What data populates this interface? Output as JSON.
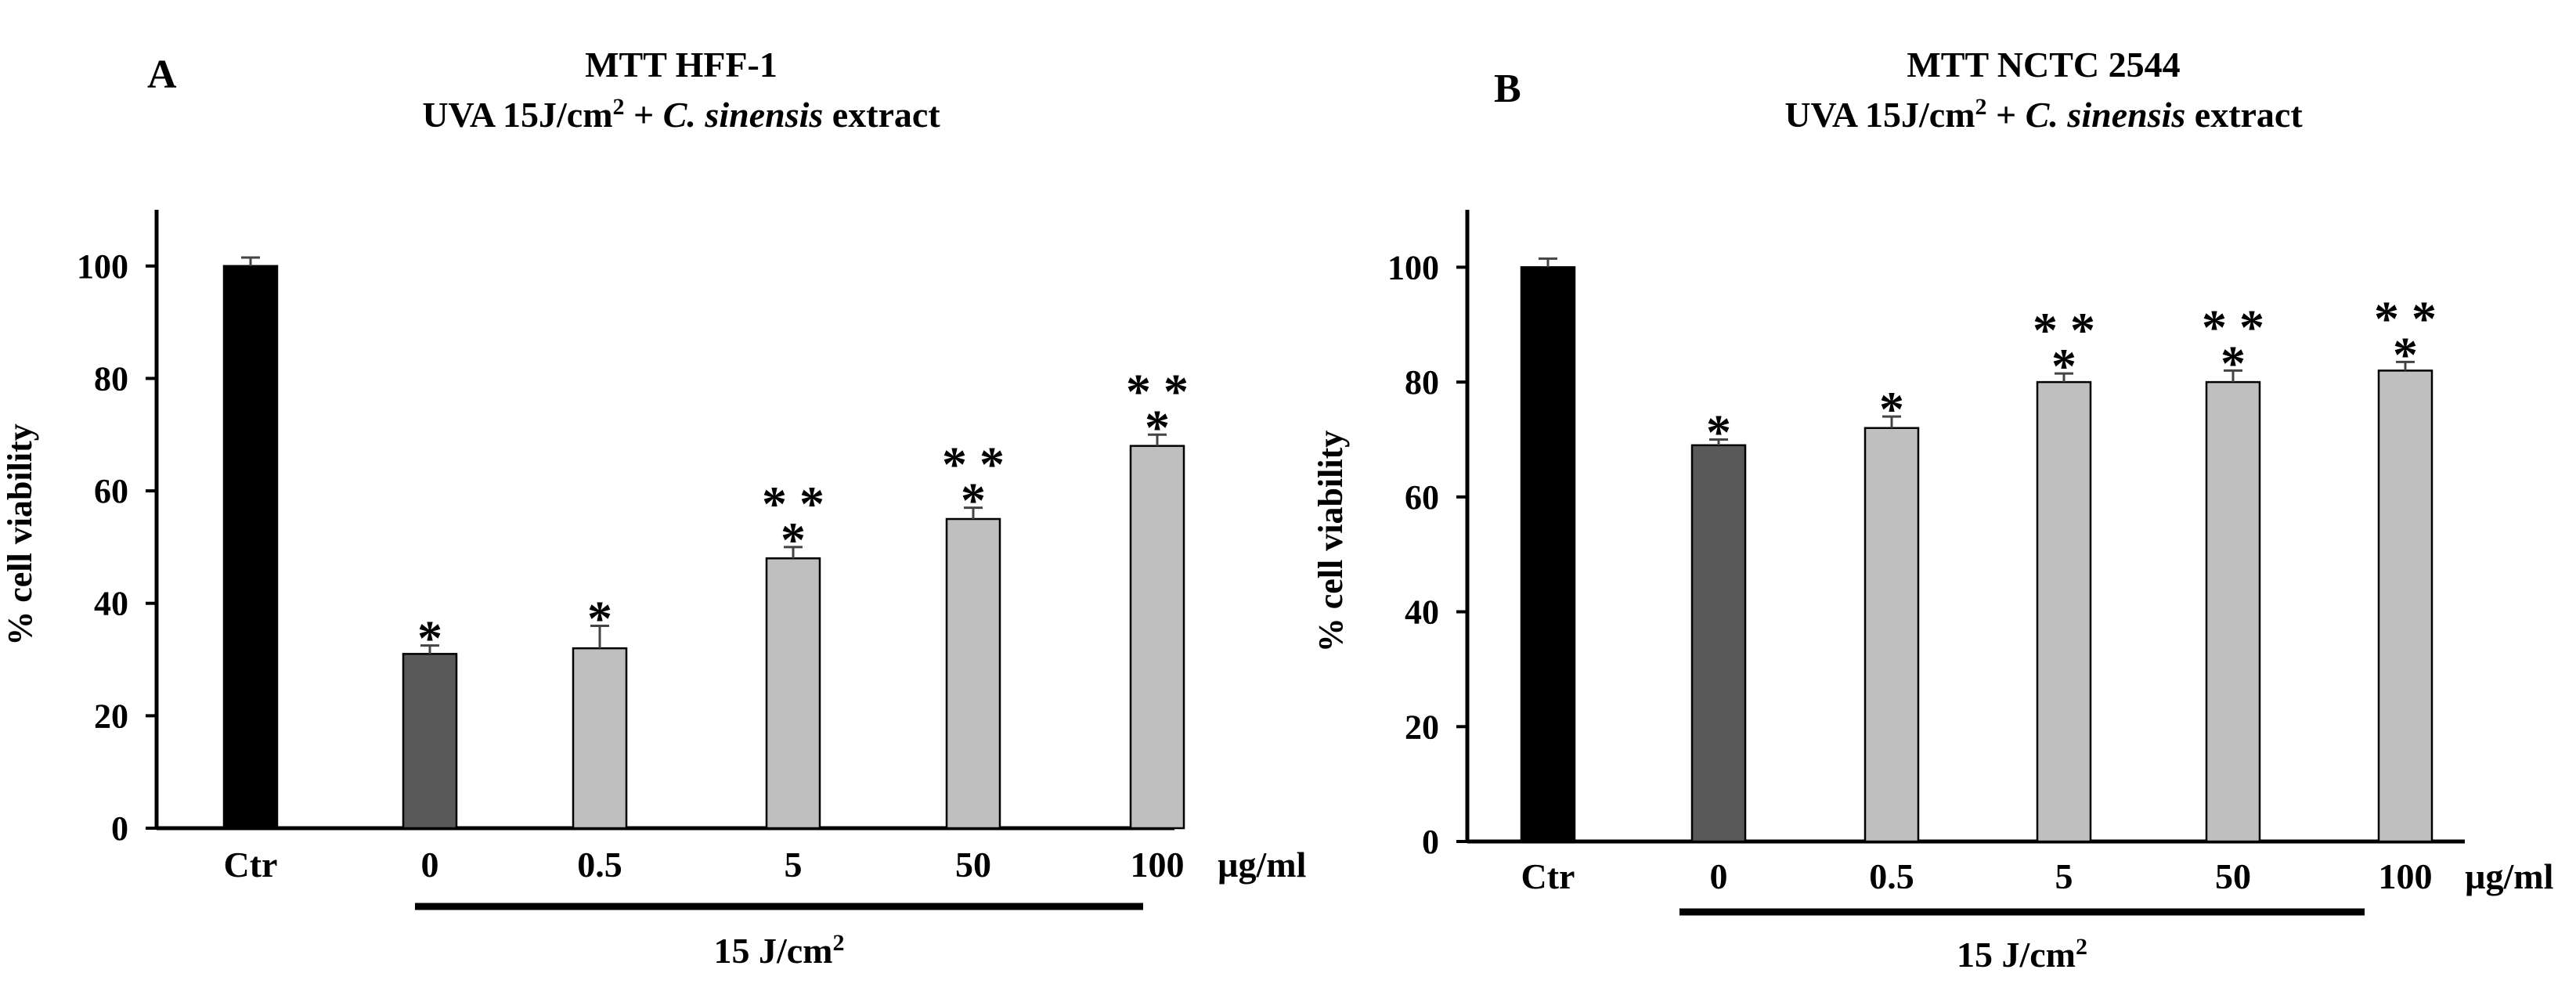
{
  "chart_data": [
    {
      "type": "bar",
      "panel_letter": "A",
      "title_line1": "MTT HFF-1",
      "title_line2": {
        "prefix": "UVA 15J/cm",
        "sup": "2",
        "middle": " + ",
        "italic": "C. sinensis",
        "suffix": " extract"
      },
      "ylabel": "% cell viability",
      "ylim": [
        0,
        110
      ],
      "yticks": [
        0,
        20,
        40,
        60,
        80,
        100
      ],
      "categories": [
        "Ctr",
        "0",
        "0.5",
        "5",
        "50",
        "100"
      ],
      "unit_label": "µg/ml",
      "values": [
        100,
        31,
        32,
        48,
        55,
        68
      ],
      "errors": [
        1.5,
        1.5,
        4,
        2,
        2,
        2
      ],
      "bar_colors": [
        "#000000",
        "#595959",
        "#bfbfbf",
        "#bfbfbf",
        "#bfbfbf",
        "#bfbfbf"
      ],
      "significance": [
        [],
        [
          "*"
        ],
        [
          "*"
        ],
        [
          "* *",
          "*"
        ],
        [
          "* *",
          "*"
        ],
        [
          "* *",
          "*"
        ]
      ],
      "group_label": {
        "prefix": "15 J/cm",
        "sup": "2"
      }
    },
    {
      "type": "bar",
      "panel_letter": "B",
      "title_line1": "MTT NCTC 2544",
      "title_line2": {
        "prefix": "UVA 15J/cm",
        "sup": "2",
        "middle": " + ",
        "italic": "C. sinensis",
        "suffix": " extract"
      },
      "ylabel": "% cell viability",
      "ylim": [
        0,
        110
      ],
      "yticks": [
        0,
        20,
        40,
        60,
        80,
        100
      ],
      "categories": [
        "Ctr",
        "0",
        "0.5",
        "5",
        "50",
        "100"
      ],
      "unit_label": "µg/ml",
      "values": [
        100,
        69,
        72,
        80,
        80,
        82
      ],
      "errors": [
        1.5,
        1,
        2,
        1.5,
        2,
        1.5
      ],
      "bar_colors": [
        "#000000",
        "#595959",
        "#bfbfbf",
        "#bfbfbf",
        "#bfbfbf",
        "#bfbfbf"
      ],
      "significance": [
        [],
        [
          "*"
        ],
        [
          "*"
        ],
        [
          "* *",
          "*"
        ],
        [
          "* *",
          "*"
        ],
        [
          "* *",
          "*"
        ]
      ],
      "group_label": {
        "prefix": "15 J/cm",
        "sup": "2"
      }
    }
  ]
}
